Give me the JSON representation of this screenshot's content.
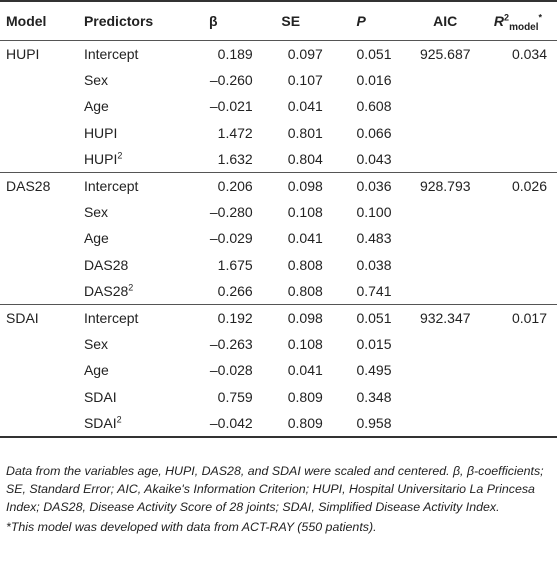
{
  "table": {
    "headers": {
      "model": "Model",
      "predictors": "Predictors",
      "beta": "β",
      "se": "SE",
      "p": "P",
      "aic": "AIC",
      "r2_base": "R",
      "r2_sup": "2",
      "r2_sub": "model",
      "r2_star": "*"
    },
    "groups": [
      {
        "model": "HUPI",
        "aic": "925.687",
        "r2": "0.034",
        "rows": [
          {
            "predictor": "Intercept",
            "beta": "0.189",
            "se": "0.097",
            "p": "0.051"
          },
          {
            "predictor": "Sex",
            "beta": "–0.260",
            "se": "0.107",
            "p": "0.016"
          },
          {
            "predictor": "Age",
            "beta": "–0.021",
            "se": "0.041",
            "p": "0.608"
          },
          {
            "predictor": "HUPI",
            "beta": "1.472",
            "se": "0.801",
            "p": "0.066"
          },
          {
            "predictor": "HUPI",
            "sup": "2",
            "beta": "1.632",
            "se": "0.804",
            "p": "0.043"
          }
        ]
      },
      {
        "model": "DAS28",
        "aic": "928.793",
        "r2": "0.026",
        "rows": [
          {
            "predictor": "Intercept",
            "beta": "0.206",
            "se": "0.098",
            "p": "0.036"
          },
          {
            "predictor": "Sex",
            "beta": "–0.280",
            "se": "0.108",
            "p": "0.100"
          },
          {
            "predictor": "Age",
            "beta": "–0.029",
            "se": "0.041",
            "p": "0.483"
          },
          {
            "predictor": "DAS28",
            "beta": "1.675",
            "se": "0.808",
            "p": "0.038"
          },
          {
            "predictor": "DAS28",
            "sup": "2",
            "beta": "0.266",
            "se": "0.808",
            "p": "0.741"
          }
        ]
      },
      {
        "model": "SDAI",
        "aic": "932.347",
        "r2": "0.017",
        "rows": [
          {
            "predictor": "Intercept",
            "beta": "0.192",
            "se": "0.098",
            "p": "0.051"
          },
          {
            "predictor": "Sex",
            "beta": "–0.263",
            "se": "0.108",
            "p": "0.015"
          },
          {
            "predictor": "Age",
            "beta": "–0.028",
            "se": "0.041",
            "p": "0.495"
          },
          {
            "predictor": "SDAI",
            "beta": "0.759",
            "se": "0.809",
            "p": "0.348"
          },
          {
            "predictor": "SDAI",
            "sup": "2",
            "beta": "–0.042",
            "se": "0.809",
            "p": "0.958"
          }
        ]
      }
    ]
  },
  "notes": {
    "main": "Data from the variables age, HUPI, DAS28, and SDAI were scaled and centered. β, β-coefficients; SE, Standard Error; AIC, Akaike's Information Criterion; HUPI, Hospital Universitario La Princesa Index; DAS28, Disease Activity Score of 28 joints; SDAI, Simplified Disease Activity Index.",
    "footnote": "*This model was developed with data from ACT-RAY (550 patients)."
  }
}
